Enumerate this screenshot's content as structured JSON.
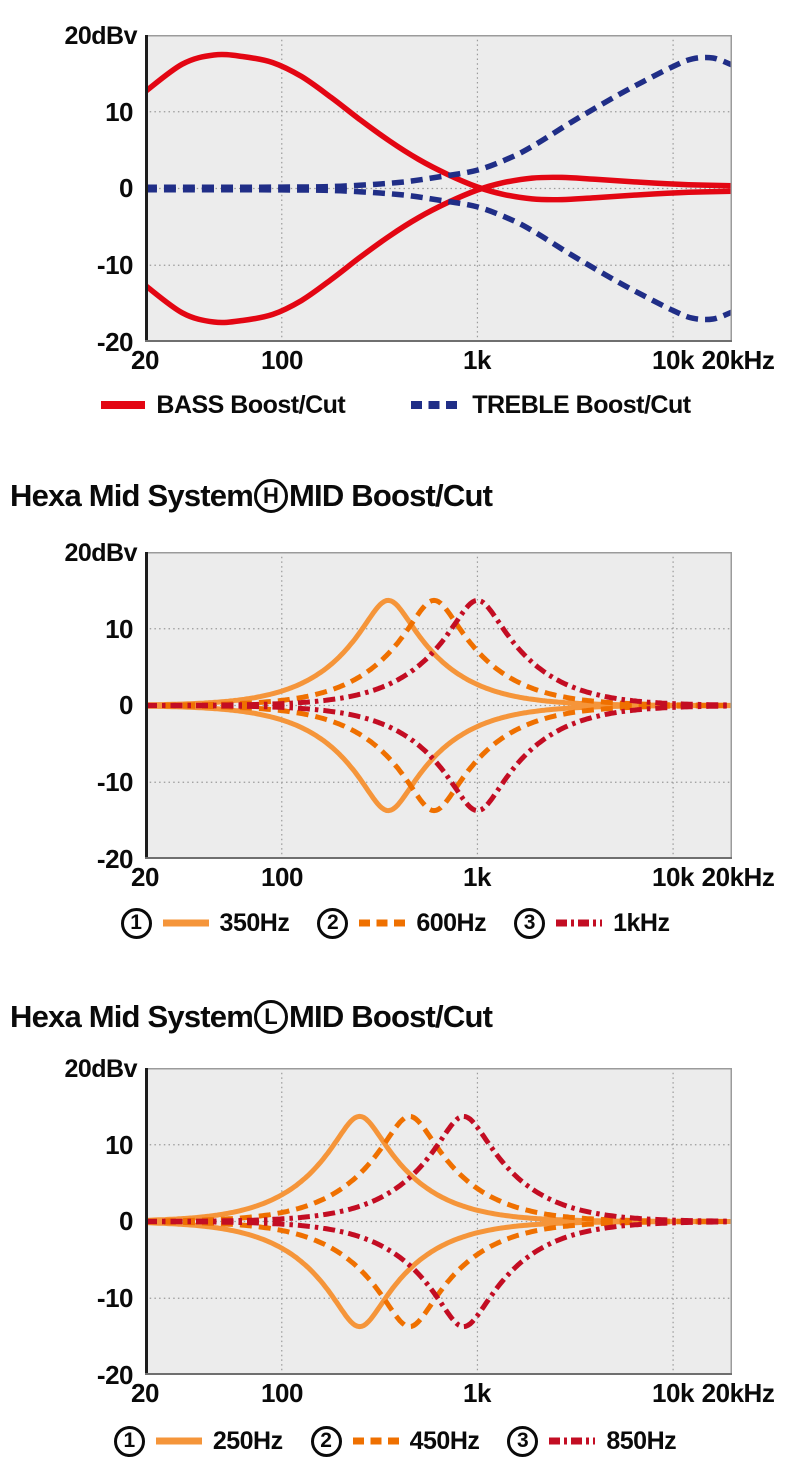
{
  "page": {
    "background": "#ffffff"
  },
  "colors": {
    "text": "#0a0a0a",
    "plot_bg": "#ececec",
    "grid": "#9a9a9a",
    "bass_red": "#e30613",
    "treble_navy": "#202e87",
    "mid_orange_light": "#f5953a",
    "mid_orange_dark": "#ef7000",
    "mid_dark_red": "#c30d23"
  },
  "chart_data": [
    {
      "type": "line",
      "title_full": "",
      "y_unit_label": "20dBv",
      "y_tick_labels": [
        "10",
        "0",
        "-10",
        "-20"
      ],
      "x_tick_labels": [
        "20",
        "100",
        "1k",
        "10k",
        "20kHz"
      ],
      "x_scale": "log",
      "x_range_hz": [
        20,
        20000
      ],
      "ylim": [
        -20,
        20
      ],
      "grid": {
        "x_hz": [
          100,
          1000,
          10000
        ],
        "y_db": [
          10,
          0,
          -10
        ]
      },
      "series": [
        {
          "name": "BASS Boost/Cut",
          "kind": "points",
          "mirrored": true,
          "color": "#e30613",
          "dash": "solid",
          "points_hz_db": [
            [
              20,
              12.6
            ],
            [
              31,
              16.2
            ],
            [
              45,
              17.4
            ],
            [
              63,
              17.2
            ],
            [
              90,
              16.4
            ],
            [
              126,
              14.6
            ],
            [
              178,
              11.9
            ],
            [
              250,
              9.0
            ],
            [
              355,
              6.2
            ],
            [
              500,
              3.8
            ],
            [
              710,
              1.8
            ],
            [
              1000,
              0.2
            ],
            [
              1350,
              -0.75
            ],
            [
              1900,
              -1.35
            ],
            [
              2700,
              -1.45
            ],
            [
              4000,
              -1.2
            ],
            [
              7000,
              -0.8
            ],
            [
              12000,
              -0.5
            ],
            [
              20000,
              -0.35
            ]
          ]
        },
        {
          "name": "TREBLE Boost/Cut",
          "kind": "points",
          "mirrored": true,
          "color": "#202e87",
          "dash": "dashed",
          "points_hz_db": [
            [
              20,
              0.15
            ],
            [
              100,
              0.18
            ],
            [
              200,
              0.3
            ],
            [
              400,
              0.8
            ],
            [
              630,
              1.5
            ],
            [
              1000,
              2.4
            ],
            [
              1500,
              4.1
            ],
            [
              2000,
              5.8
            ],
            [
              3000,
              8.6
            ],
            [
              5000,
              11.9
            ],
            [
              7000,
              13.9
            ],
            [
              10000,
              15.9
            ],
            [
              12600,
              16.9
            ],
            [
              16000,
              17.0
            ],
            [
              20000,
              16.1
            ]
          ]
        }
      ],
      "legend": [
        {
          "label": "BASS Boost/Cut",
          "color": "#e30613",
          "dash": "solid"
        },
        {
          "label": "TREBLE Boost/Cut",
          "color": "#202e87",
          "dash": "dashed"
        }
      ]
    },
    {
      "type": "line",
      "title_full": "Hexa Mid System (H) MID Boost/Cut",
      "title_prefix": "Hexa Mid System",
      "title_circle": "H",
      "title_suffix": "MID Boost/Cut",
      "y_unit_label": "20dBv",
      "y_tick_labels": [
        "10",
        "0",
        "-10",
        "-20"
      ],
      "x_tick_labels": [
        "20",
        "100",
        "1k",
        "10k",
        "20kHz"
      ],
      "x_scale": "log",
      "x_range_hz": [
        20,
        20000
      ],
      "ylim": [
        -20,
        20
      ],
      "grid": {
        "x_hz": [
          100,
          1000,
          10000
        ],
        "y_db": [
          10,
          0,
          -10
        ]
      },
      "series": [
        {
          "num": "1",
          "name": "350Hz",
          "kind": "peaking",
          "fc_hz": 350,
          "gain_db": 13.7,
          "q": 0.9,
          "mirrored": true,
          "color": "#f5953a",
          "dash": "solid"
        },
        {
          "num": "2",
          "name": "600Hz",
          "kind": "peaking",
          "fc_hz": 600,
          "gain_db": 13.7,
          "q": 0.9,
          "mirrored": true,
          "color": "#ef7000",
          "dash": "dashed"
        },
        {
          "num": "3",
          "name": "1kHz",
          "kind": "peaking",
          "fc_hz": 1000,
          "gain_db": 13.7,
          "q": 0.9,
          "mirrored": true,
          "color": "#c30d23",
          "dash": "dashdot"
        }
      ],
      "legend": [
        {
          "num": "1",
          "label": "350Hz",
          "color": "#f5953a",
          "dash": "solid"
        },
        {
          "num": "2",
          "label": "600Hz",
          "color": "#ef7000",
          "dash": "dashed"
        },
        {
          "num": "3",
          "label": "1kHz",
          "color": "#c30d23",
          "dash": "dashdot"
        }
      ]
    },
    {
      "type": "line",
      "title_full": "Hexa Mid System (L) MID Boost/Cut",
      "title_prefix": "Hexa Mid System",
      "title_circle": "L",
      "title_suffix": "MID Boost/Cut",
      "y_unit_label": "20dBv",
      "y_tick_labels": [
        "10",
        "0",
        "-10",
        "-20"
      ],
      "x_tick_labels": [
        "20",
        "100",
        "1k",
        "10k",
        "20kHz"
      ],
      "x_scale": "log",
      "x_range_hz": [
        20,
        20000
      ],
      "ylim": [
        -20,
        20
      ],
      "grid": {
        "x_hz": [
          100,
          1000,
          10000
        ],
        "y_db": [
          10,
          0,
          -10
        ]
      },
      "series": [
        {
          "num": "1",
          "name": "250Hz",
          "kind": "peaking",
          "fc_hz": 250,
          "gain_db": 13.7,
          "q": 0.9,
          "mirrored": true,
          "color": "#f5953a",
          "dash": "solid"
        },
        {
          "num": "2",
          "name": "450Hz",
          "kind": "peaking",
          "fc_hz": 450,
          "gain_db": 13.7,
          "q": 0.9,
          "mirrored": true,
          "color": "#ef7000",
          "dash": "dashed"
        },
        {
          "num": "3",
          "name": "850Hz",
          "kind": "peaking",
          "fc_hz": 850,
          "gain_db": 13.7,
          "q": 0.9,
          "mirrored": true,
          "color": "#c30d23",
          "dash": "dashdot"
        }
      ],
      "legend": [
        {
          "num": "1",
          "label": "250Hz",
          "color": "#f5953a",
          "dash": "solid"
        },
        {
          "num": "2",
          "label": "450Hz",
          "color": "#ef7000",
          "dash": "dashed"
        },
        {
          "num": "3",
          "label": "850Hz",
          "color": "#c30d23",
          "dash": "dashdot"
        }
      ]
    }
  ]
}
